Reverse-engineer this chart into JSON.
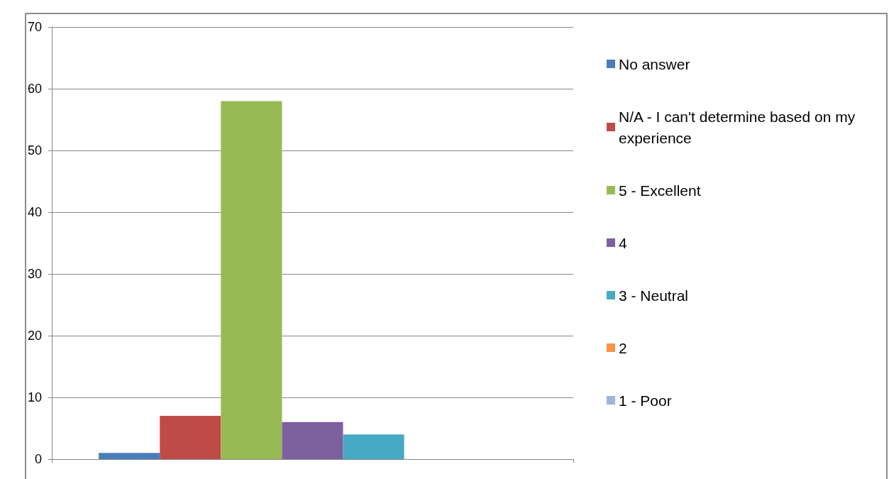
{
  "chart_data": {
    "type": "bar",
    "categories": [
      null
    ],
    "series": [
      {
        "name": "No answer",
        "color": "#4a7ebb",
        "values": [
          1
        ]
      },
      {
        "name": "N/A - I can't determine based on my experience",
        "color": "#be4b48",
        "values": [
          7
        ]
      },
      {
        "name": "5 - Excellent",
        "color": "#98b954",
        "values": [
          58
        ]
      },
      {
        "name": "4",
        "color": "#7d60a0",
        "values": [
          6
        ]
      },
      {
        "name": "3 - Neutral",
        "color": "#46aac5",
        "values": [
          4
        ]
      },
      {
        "name": "2",
        "color": "#f79646",
        "values": [
          0
        ]
      },
      {
        "name": "1 - Poor",
        "color": "#9bb5db",
        "values": [
          0
        ]
      }
    ],
    "ylim": [
      0,
      70
    ],
    "yticks": [
      0,
      10,
      20,
      30,
      40,
      50,
      60,
      70
    ],
    "grid": "y",
    "legend": "right"
  }
}
